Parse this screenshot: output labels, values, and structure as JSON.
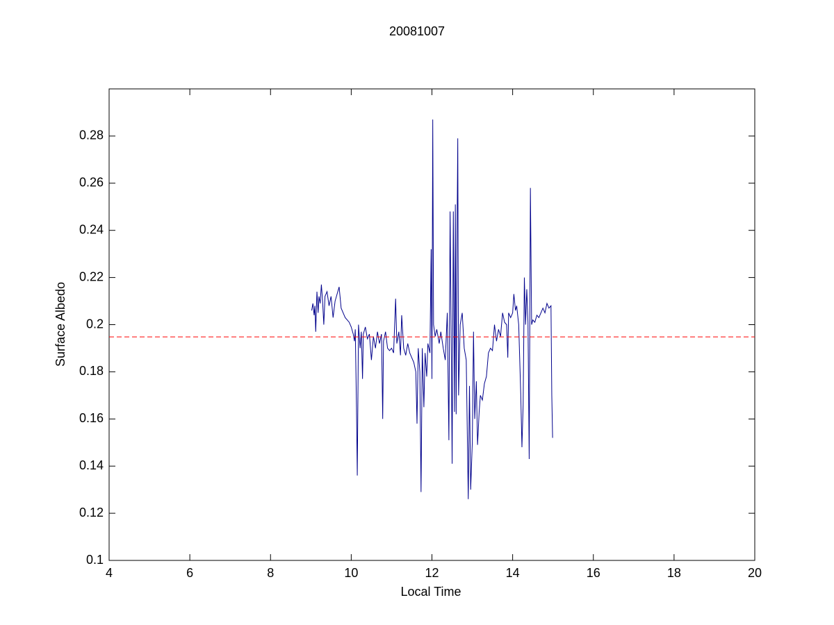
{
  "chart_data": {
    "type": "line",
    "title": "20081007",
    "xlabel": "Local Time",
    "ylabel": "Surface Albedo",
    "xlim": [
      4,
      20
    ],
    "xticks": [
      4,
      6,
      8,
      10,
      12,
      14,
      16,
      18,
      20
    ],
    "ylim": [
      0.1,
      0.3
    ],
    "yticks": [
      0.1,
      0.12,
      0.14,
      0.16,
      0.18,
      0.2,
      0.22,
      0.24,
      0.26,
      0.28
    ],
    "grid": false,
    "series": [
      {
        "color": "#00008b",
        "x": [
          9.02,
          9.05,
          9.08,
          9.1,
          9.12,
          9.15,
          9.18,
          9.2,
          9.23,
          9.26,
          9.29,
          9.32,
          9.35,
          9.4,
          9.45,
          9.5,
          9.55,
          9.6,
          9.65,
          9.7,
          9.75,
          9.8,
          9.85,
          9.9,
          9.95,
          10.0,
          10.05,
          10.08,
          10.1,
          10.13,
          10.15,
          10.18,
          10.22,
          10.25,
          10.28,
          10.3,
          10.35,
          10.4,
          10.45,
          10.5,
          10.55,
          10.6,
          10.65,
          10.7,
          10.75,
          10.78,
          10.8,
          10.85,
          10.9,
          10.95,
          11.0,
          11.05,
          11.1,
          11.13,
          11.18,
          11.22,
          11.25,
          11.3,
          11.35,
          11.4,
          11.45,
          11.5,
          11.55,
          11.6,
          11.63,
          11.66,
          11.7,
          11.73,
          11.76,
          11.8,
          11.83,
          11.87,
          11.9,
          11.95,
          11.98,
          12.0,
          12.02,
          12.04,
          12.08,
          12.12,
          12.18,
          12.22,
          12.28,
          12.33,
          12.38,
          12.42,
          12.45,
          12.48,
          12.5,
          12.53,
          12.56,
          12.58,
          12.6,
          12.62,
          12.64,
          12.66,
          12.7,
          12.75,
          12.8,
          12.85,
          12.9,
          12.93,
          12.96,
          13.0,
          13.03,
          13.06,
          13.1,
          13.13,
          13.17,
          13.2,
          13.25,
          13.3,
          13.35,
          13.4,
          13.45,
          13.5,
          13.55,
          13.6,
          13.65,
          13.7,
          13.75,
          13.8,
          13.85,
          13.88,
          13.9,
          13.95,
          14.0,
          14.03,
          14.07,
          14.1,
          14.15,
          14.2,
          14.23,
          14.26,
          14.29,
          14.32,
          14.35,
          14.38,
          14.41,
          14.44,
          14.47,
          14.5,
          14.55,
          14.6,
          14.65,
          14.7,
          14.75,
          14.8,
          14.85,
          14.9,
          14.95,
          14.97,
          14.99
        ],
        "values": [
          0.206,
          0.209,
          0.204,
          0.208,
          0.197,
          0.214,
          0.205,
          0.212,
          0.209,
          0.217,
          0.21,
          0.2,
          0.212,
          0.214,
          0.208,
          0.212,
          0.203,
          0.21,
          0.213,
          0.216,
          0.207,
          0.205,
          0.203,
          0.202,
          0.201,
          0.199,
          0.196,
          0.193,
          0.198,
          0.165,
          0.136,
          0.2,
          0.19,
          0.197,
          0.177,
          0.196,
          0.199,
          0.194,
          0.196,
          0.185,
          0.195,
          0.19,
          0.197,
          0.192,
          0.196,
          0.16,
          0.193,
          0.197,
          0.19,
          0.189,
          0.19,
          0.188,
          0.211,
          0.192,
          0.197,
          0.187,
          0.204,
          0.19,
          0.187,
          0.192,
          0.188,
          0.186,
          0.184,
          0.18,
          0.158,
          0.19,
          0.18,
          0.129,
          0.19,
          0.165,
          0.188,
          0.178,
          0.192,
          0.188,
          0.232,
          0.177,
          0.287,
          0.2,
          0.195,
          0.198,
          0.192,
          0.197,
          0.19,
          0.185,
          0.205,
          0.151,
          0.248,
          0.19,
          0.141,
          0.248,
          0.163,
          0.251,
          0.162,
          0.233,
          0.279,
          0.17,
          0.2,
          0.205,
          0.19,
          0.185,
          0.126,
          0.174,
          0.13,
          0.15,
          0.197,
          0.16,
          0.176,
          0.149,
          0.163,
          0.17,
          0.168,
          0.175,
          0.178,
          0.188,
          0.19,
          0.189,
          0.2,
          0.193,
          0.198,
          0.195,
          0.205,
          0.201,
          0.2,
          0.186,
          0.205,
          0.203,
          0.205,
          0.213,
          0.206,
          0.208,
          0.2,
          0.171,
          0.148,
          0.166,
          0.22,
          0.2,
          0.215,
          0.201,
          0.143,
          0.258,
          0.2,
          0.202,
          0.201,
          0.204,
          0.203,
          0.205,
          0.207,
          0.205,
          0.209,
          0.207,
          0.208,
          0.17,
          0.152
        ]
      },
      {
        "color": "#ff0000",
        "dashed": true,
        "x": [
          4,
          20
        ],
        "values": [
          0.1948,
          0.1948
        ]
      }
    ]
  }
}
